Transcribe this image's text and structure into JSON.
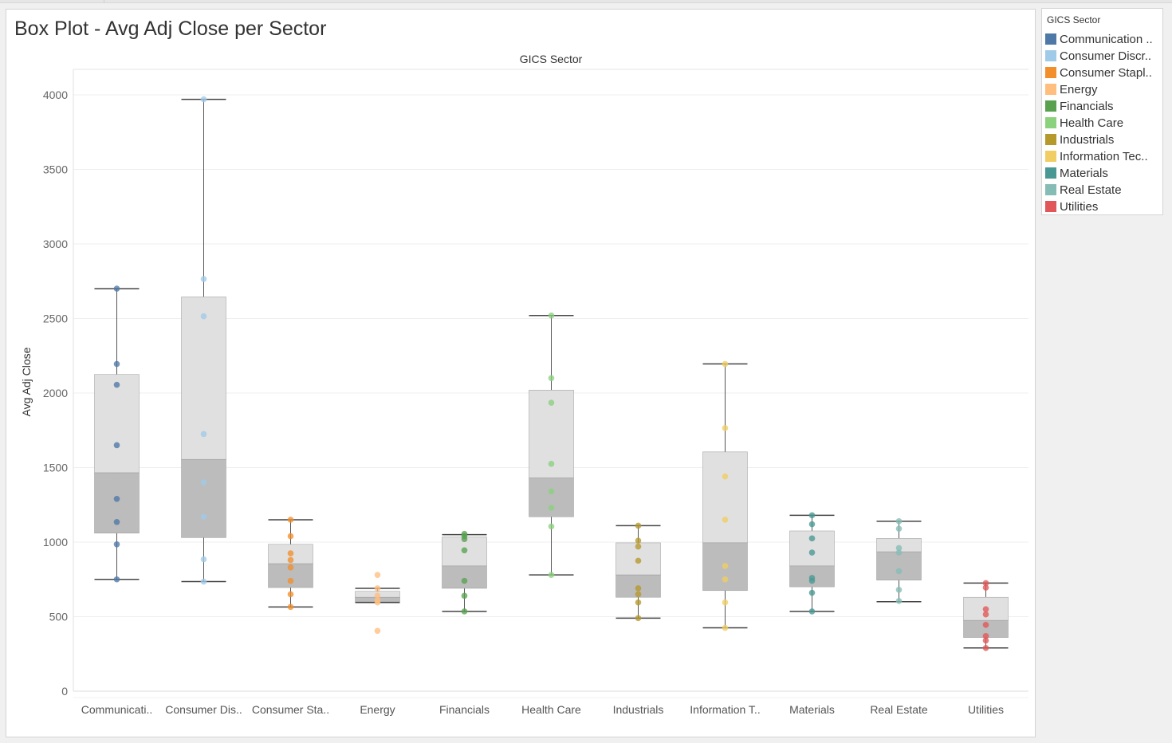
{
  "sheet": {
    "title": "Box Plot - Avg Adj Close per Sector"
  },
  "legend": {
    "title": "GICS Sector",
    "items": [
      {
        "label": "Communication ..",
        "color": "#4e79a7"
      },
      {
        "label": "Consumer Discr..",
        "color": "#a0cbe8"
      },
      {
        "label": "Consumer Stapl..",
        "color": "#f28e2b"
      },
      {
        "label": "Energy",
        "color": "#ffbe7d"
      },
      {
        "label": "Financials",
        "color": "#59a14f"
      },
      {
        "label": "Health Care",
        "color": "#8cd17d"
      },
      {
        "label": "Industrials",
        "color": "#b6992d"
      },
      {
        "label": "Information Tec..",
        "color": "#f1ce63"
      },
      {
        "label": "Materials",
        "color": "#499894"
      },
      {
        "label": "Real Estate",
        "color": "#86bcb6"
      },
      {
        "label": "Utilities",
        "color": "#e15759"
      }
    ]
  },
  "chart_data": {
    "type": "box",
    "title": "Box Plot - Avg Adj Close per Sector",
    "column_header": "GICS Sector",
    "xlabel": "",
    "ylabel": "Avg Adj Close",
    "ylim": [
      0,
      4000
    ],
    "yticks": [
      0,
      500,
      1000,
      1500,
      2000,
      2500,
      3000,
      3500,
      4000
    ],
    "grid": true,
    "legend_position": "right",
    "categories": [
      "Communicati..",
      "Consumer Dis..",
      "Consumer Sta..",
      "Energy",
      "Financials",
      "Health Care",
      "Industrials",
      "Information T..",
      "Materials",
      "Real Estate",
      "Utilities"
    ],
    "colors": [
      "#4e79a7",
      "#a0cbe8",
      "#f28e2b",
      "#ffbe7d",
      "#59a14f",
      "#8cd17d",
      "#b6992d",
      "#f1ce63",
      "#499894",
      "#86bcb6",
      "#e15759"
    ],
    "boxes": [
      {
        "min": 750,
        "q1": 1060,
        "median": 1465,
        "q3": 2125,
        "max": 2700
      },
      {
        "min": 735,
        "q1": 1030,
        "median": 1555,
        "q3": 2645,
        "max": 3970
      },
      {
        "min": 565,
        "q1": 695,
        "median": 855,
        "q3": 985,
        "max": 1150
      },
      {
        "min": 595,
        "q1": 600,
        "median": 630,
        "q3": 670,
        "max": 690
      },
      {
        "min": 535,
        "q1": 690,
        "median": 840,
        "q3": 1035,
        "max": 1050
      },
      {
        "min": 780,
        "q1": 1170,
        "median": 1430,
        "q3": 2020,
        "max": 2520
      },
      {
        "min": 490,
        "q1": 630,
        "median": 780,
        "q3": 995,
        "max": 1110
      },
      {
        "min": 425,
        "q1": 675,
        "median": 995,
        "q3": 1605,
        "max": 2195
      },
      {
        "min": 535,
        "q1": 700,
        "median": 840,
        "q3": 1075,
        "max": 1180
      },
      {
        "min": 600,
        "q1": 745,
        "median": 935,
        "q3": 1025,
        "max": 1140
      },
      {
        "min": 290,
        "q1": 360,
        "median": 475,
        "q3": 630,
        "max": 725
      }
    ],
    "points": [
      [
        2700,
        2195,
        2055,
        1650,
        1290,
        1135,
        985,
        750
      ],
      [
        3970,
        2765,
        2515,
        1725,
        1400,
        1170,
        885,
        735
      ],
      [
        1150,
        1040,
        925,
        880,
        830,
        740,
        650,
        565
      ],
      [
        780,
        690,
        640,
        610,
        595,
        405
      ],
      [
        1055,
        1040,
        1020,
        945,
        740,
        640,
        535
      ],
      [
        2520,
        2100,
        1935,
        1525,
        1340,
        1230,
        1105,
        780
      ],
      [
        1110,
        1010,
        970,
        875,
        690,
        650,
        595,
        490
      ],
      [
        2195,
        1765,
        1440,
        1150,
        840,
        750,
        595,
        425
      ],
      [
        1180,
        1120,
        1025,
        930,
        760,
        740,
        660,
        535
      ],
      [
        1140,
        1090,
        960,
        930,
        805,
        680,
        605
      ],
      [
        725,
        695,
        550,
        515,
        445,
        370,
        340,
        290
      ]
    ]
  }
}
